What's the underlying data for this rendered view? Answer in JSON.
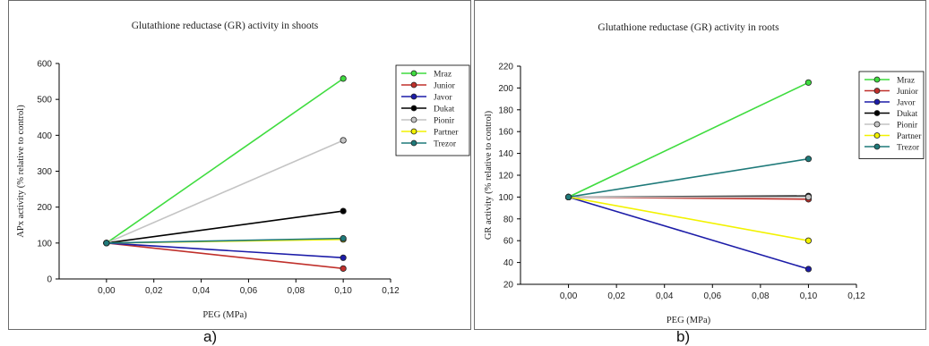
{
  "captions": {
    "a": "a)",
    "b": "b)"
  },
  "chart_data": [
    {
      "type": "line",
      "title": "Glutathione reductase (GR) activity in shoots",
      "xlabel": "PEG (MPa)",
      "ylabel": "APx activity (% relative to control)",
      "xlim": [
        -0.02,
        0.12
      ],
      "ylim": [
        0,
        600
      ],
      "xticks": [
        "0,00",
        "0,02",
        "0,04",
        "0,06",
        "0,08",
        "0,10",
        "0,12"
      ],
      "yticks": [
        "0",
        "100",
        "200",
        "300",
        "400",
        "500",
        "600"
      ],
      "legend_position": "right",
      "x": [
        0.0,
        0.1
      ],
      "series": [
        {
          "name": "Mraz",
          "color": "#3fdc3f",
          "values": [
            100,
            558
          ]
        },
        {
          "name": "Junior",
          "color": "#c0302b",
          "values": [
            100,
            29
          ]
        },
        {
          "name": "Javor",
          "color": "#1c1ca8",
          "values": [
            100,
            59
          ]
        },
        {
          "name": "Dukat",
          "color": "#000000",
          "values": [
            100,
            189
          ]
        },
        {
          "name": "Pionir",
          "color": "#c4c4c4",
          "values": [
            100,
            386
          ]
        },
        {
          "name": "Partner",
          "color": "#f2f200",
          "values": [
            100,
            110
          ]
        },
        {
          "name": "Trezor",
          "color": "#1f7a7a",
          "values": [
            100,
            113
          ]
        }
      ]
    },
    {
      "type": "line",
      "title": "Glutathione reductase (GR) activity in roots",
      "xlabel": "PEG (MPa)",
      "ylabel": "GR activity (% relative to control)",
      "xlim": [
        -0.02,
        0.12
      ],
      "ylim": [
        20,
        220
      ],
      "xticks": [
        "0,00",
        "0,02",
        "0,04",
        "0,06",
        "0,08",
        "0,10",
        "0,12"
      ],
      "yticks": [
        "20",
        "40",
        "60",
        "80",
        "100",
        "120",
        "140",
        "160",
        "180",
        "200",
        "220"
      ],
      "legend_position": "right",
      "x": [
        0.0,
        0.1
      ],
      "series": [
        {
          "name": "Mraz",
          "color": "#3fdc3f",
          "values": [
            100,
            205
          ]
        },
        {
          "name": "Junior",
          "color": "#c0302b",
          "values": [
            100,
            98
          ]
        },
        {
          "name": "Javor",
          "color": "#1c1ca8",
          "values": [
            100,
            34
          ]
        },
        {
          "name": "Dukat",
          "color": "#000000",
          "values": [
            100,
            101
          ]
        },
        {
          "name": "Pionir",
          "color": "#c4c4c4",
          "values": [
            100,
            100
          ]
        },
        {
          "name": "Partner",
          "color": "#f2f200",
          "values": [
            100,
            60
          ]
        },
        {
          "name": "Trezor",
          "color": "#1f7a7a",
          "values": [
            100,
            135
          ]
        }
      ]
    }
  ]
}
